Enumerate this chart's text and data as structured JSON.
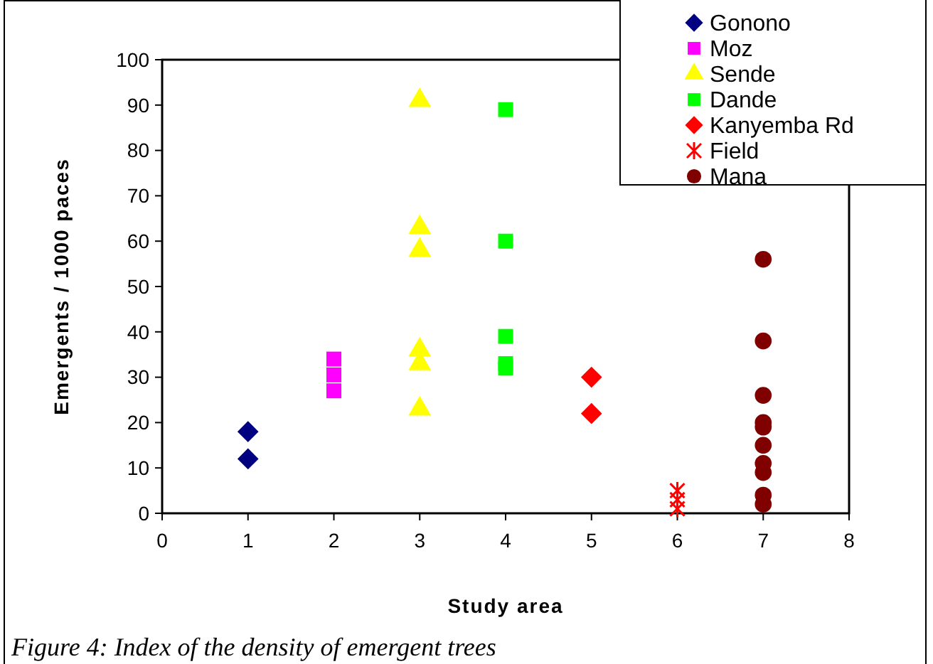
{
  "chart_data": {
    "type": "scatter",
    "xlabel": "Study area",
    "ylabel": "Emergents / 1000 paces",
    "xlim": [
      0,
      8
    ],
    "xticks": [
      0,
      1,
      2,
      3,
      4,
      5,
      6,
      7,
      8
    ],
    "ylim": [
      0,
      100
    ],
    "yticks": [
      0,
      10,
      20,
      30,
      40,
      50,
      60,
      70,
      80,
      90,
      100
    ],
    "grid": false,
    "legend": "top right",
    "annotations": [
      "Figure 4: Index of the density of emergent trees"
    ],
    "series": [
      {
        "name": "Gonono",
        "color": "#000080",
        "marker": "diamond",
        "x": [
          1,
          1
        ],
        "values": [
          18,
          12
        ]
      },
      {
        "name": "Moz",
        "color": "#ff00ff",
        "marker": "square",
        "x": [
          2,
          2,
          2
        ],
        "values": [
          34,
          30.5,
          27
        ]
      },
      {
        "name": "Sende",
        "color": "#ffff00",
        "marker": "triangle",
        "x": [
          3,
          3,
          3,
          3,
          3,
          3
        ],
        "values": [
          91,
          63,
          58,
          36,
          33,
          23
        ]
      },
      {
        "name": "Dande",
        "color": "#00ff00",
        "marker": "square",
        "x": [
          4,
          4,
          4,
          4,
          4
        ],
        "values": [
          89,
          60,
          39,
          33,
          32
        ]
      },
      {
        "name": "Kanyemba Rd",
        "color": "#ff0000",
        "marker": "diamond",
        "x": [
          5,
          5
        ],
        "values": [
          30,
          22
        ]
      },
      {
        "name": "Field",
        "color": "#ff0000",
        "marker": "cross",
        "x": [
          6,
          6,
          6
        ],
        "values": [
          5,
          3,
          1
        ]
      },
      {
        "name": "Mana",
        "color": "#800000",
        "marker": "circle",
        "x": [
          7,
          7,
          7,
          7,
          7,
          7,
          7,
          7,
          7,
          7
        ],
        "values": [
          56,
          38,
          26,
          20,
          19,
          15,
          11,
          9,
          4,
          2
        ]
      }
    ]
  }
}
